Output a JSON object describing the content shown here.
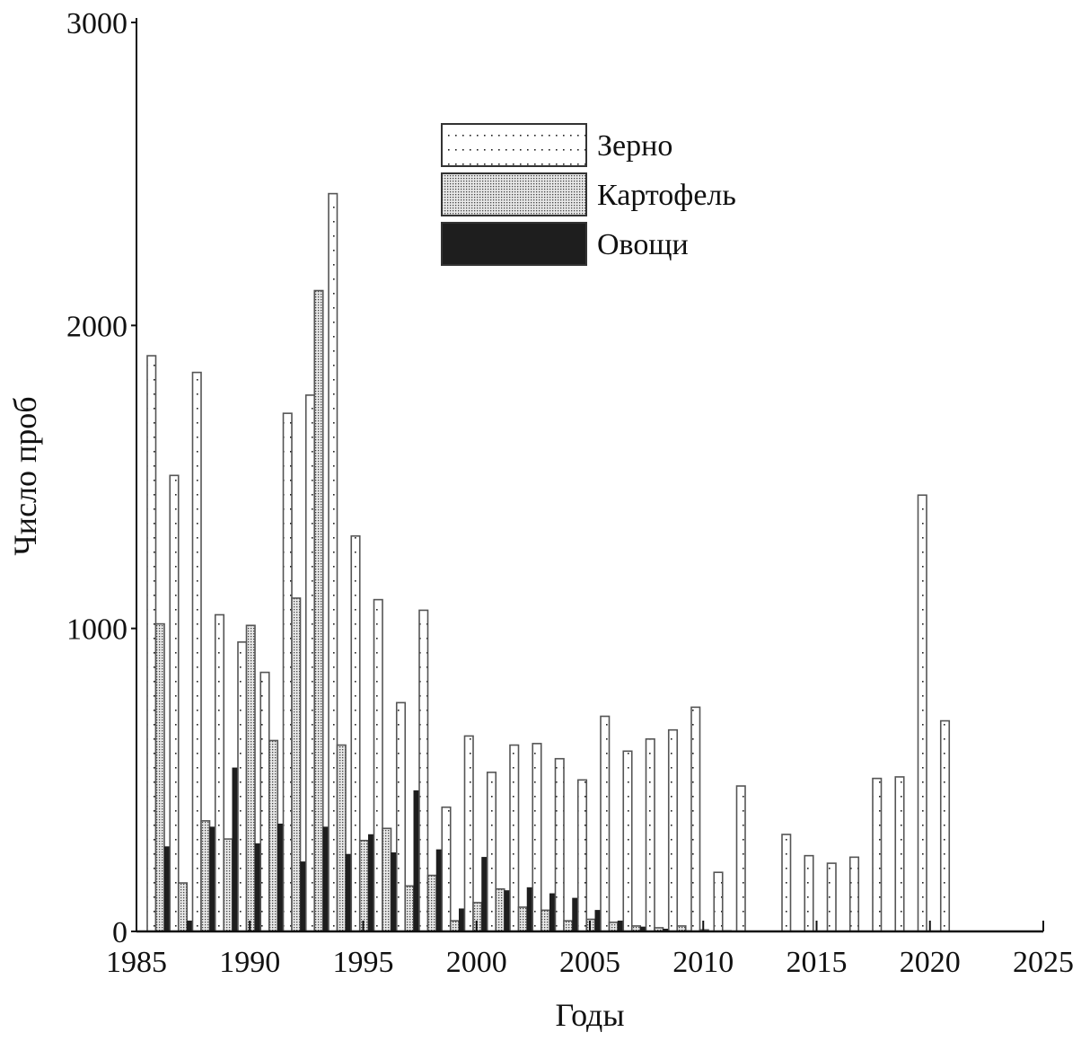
{
  "chart_data": {
    "type": "bar",
    "xlabel": "Годы",
    "ylabel": "Число проб",
    "xlim": [
      1985,
      2025
    ],
    "ylim": [
      0,
      3000
    ],
    "x_ticks": [
      1985,
      1990,
      1995,
      2000,
      2005,
      2010,
      2015,
      2020,
      2025
    ],
    "y_ticks": [
      0,
      1000,
      2000,
      3000
    ],
    "grid": false,
    "legend_position": "top-center",
    "years": [
      1986,
      1987,
      1988,
      1989,
      1990,
      1991,
      1992,
      1993,
      1994,
      1995,
      1996,
      1997,
      1998,
      1999,
      2000,
      2001,
      2002,
      2003,
      2004,
      2005,
      2006,
      2007,
      2008,
      2009,
      2010,
      2011,
      2012,
      2013,
      2014,
      2015,
      2016,
      2017,
      2018,
      2019,
      2020,
      2021
    ],
    "series": [
      {
        "name": "Зерно",
        "pattern": "sparse-dots",
        "color": "#ffffff",
        "values": [
          1900,
          1505,
          1845,
          1045,
          955,
          855,
          1710,
          1770,
          2435,
          1305,
          1095,
          755,
          1060,
          410,
          645,
          525,
          615,
          620,
          570,
          500,
          710,
          595,
          635,
          665,
          740,
          195,
          480,
          null,
          320,
          250,
          225,
          245,
          505,
          510,
          1440,
          695
        ]
      },
      {
        "name": "Картофель",
        "pattern": "dense-dots",
        "color": "#bdbdbd",
        "values": [
          1015,
          160,
          365,
          305,
          1010,
          630,
          1100,
          2115,
          615,
          300,
          340,
          150,
          185,
          35,
          95,
          140,
          80,
          70,
          35,
          40,
          30,
          18,
          12,
          18,
          5,
          2,
          null,
          null,
          null,
          null,
          null,
          null,
          null,
          null,
          null,
          null
        ]
      },
      {
        "name": "Овощи",
        "pattern": "solid",
        "color": "#1e1e1e",
        "values": [
          280,
          35,
          345,
          540,
          290,
          355,
          230,
          345,
          255,
          320,
          260,
          465,
          270,
          75,
          245,
          135,
          145,
          125,
          110,
          70,
          35,
          15,
          8,
          3,
          null,
          null,
          null,
          null,
          null,
          null,
          null,
          null,
          null,
          null,
          null,
          null
        ]
      }
    ]
  }
}
